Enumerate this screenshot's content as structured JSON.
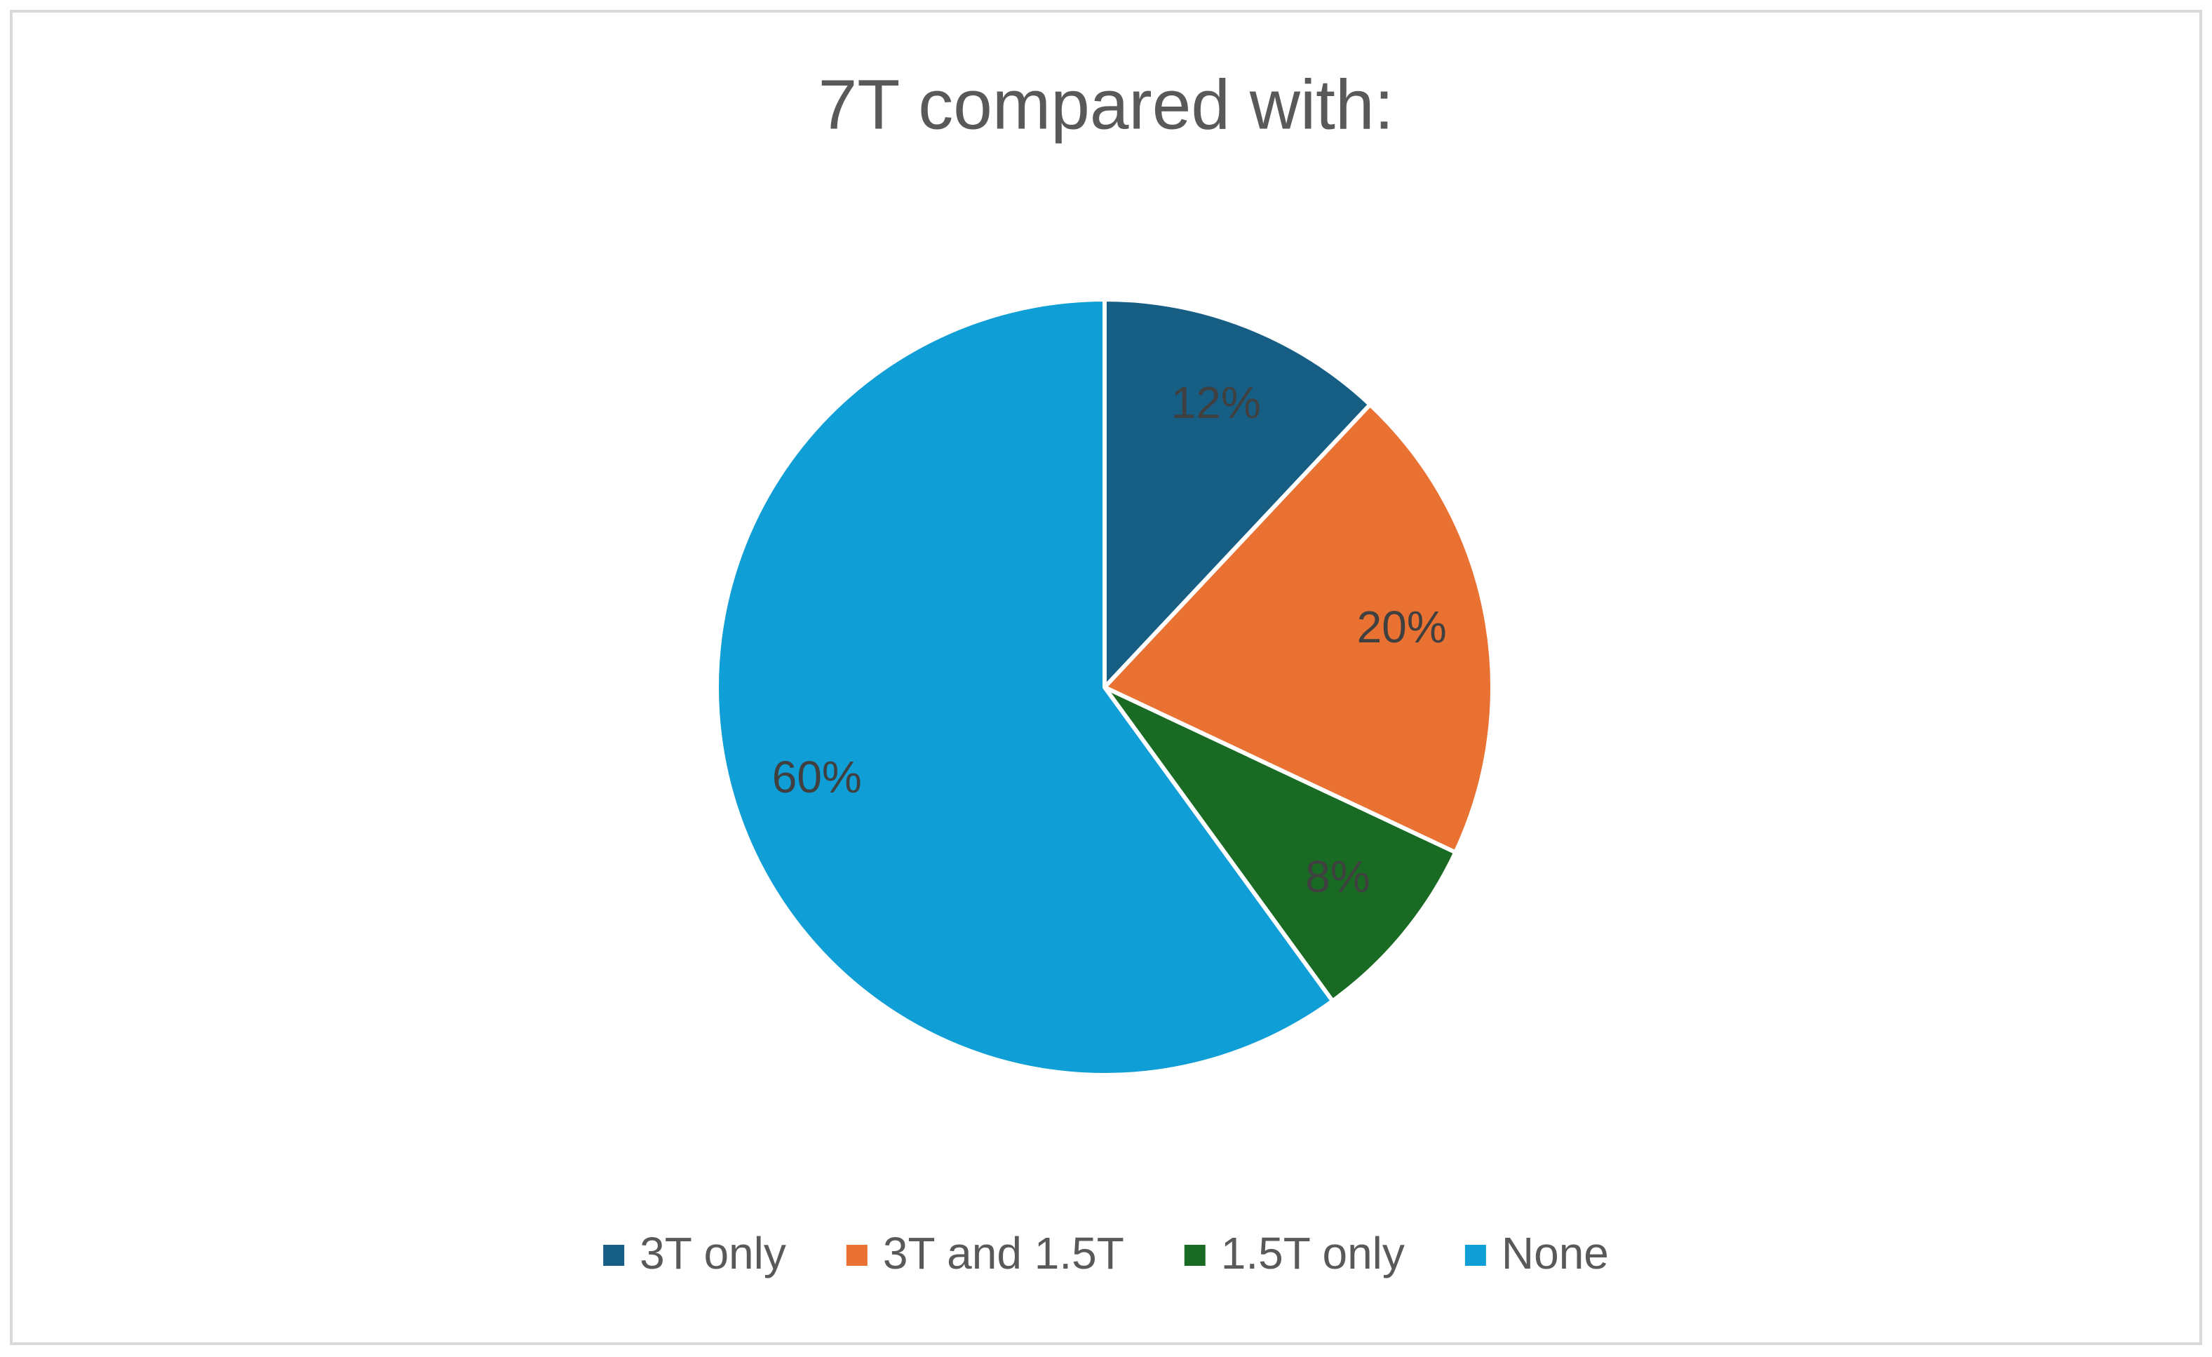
{
  "chart_data": {
    "type": "pie",
    "title": "7T compared with:",
    "categories": [
      "3T only",
      "3T and 1.5T",
      "1.5T only",
      "None"
    ],
    "values": [
      12,
      20,
      8,
      60
    ],
    "value_labels": [
      "12%",
      "20%",
      "8%",
      "60%"
    ],
    "colors": [
      "#175e85",
      "#e97132",
      "#196b24",
      "#0f9ed5"
    ],
    "legend": "bottom"
  }
}
